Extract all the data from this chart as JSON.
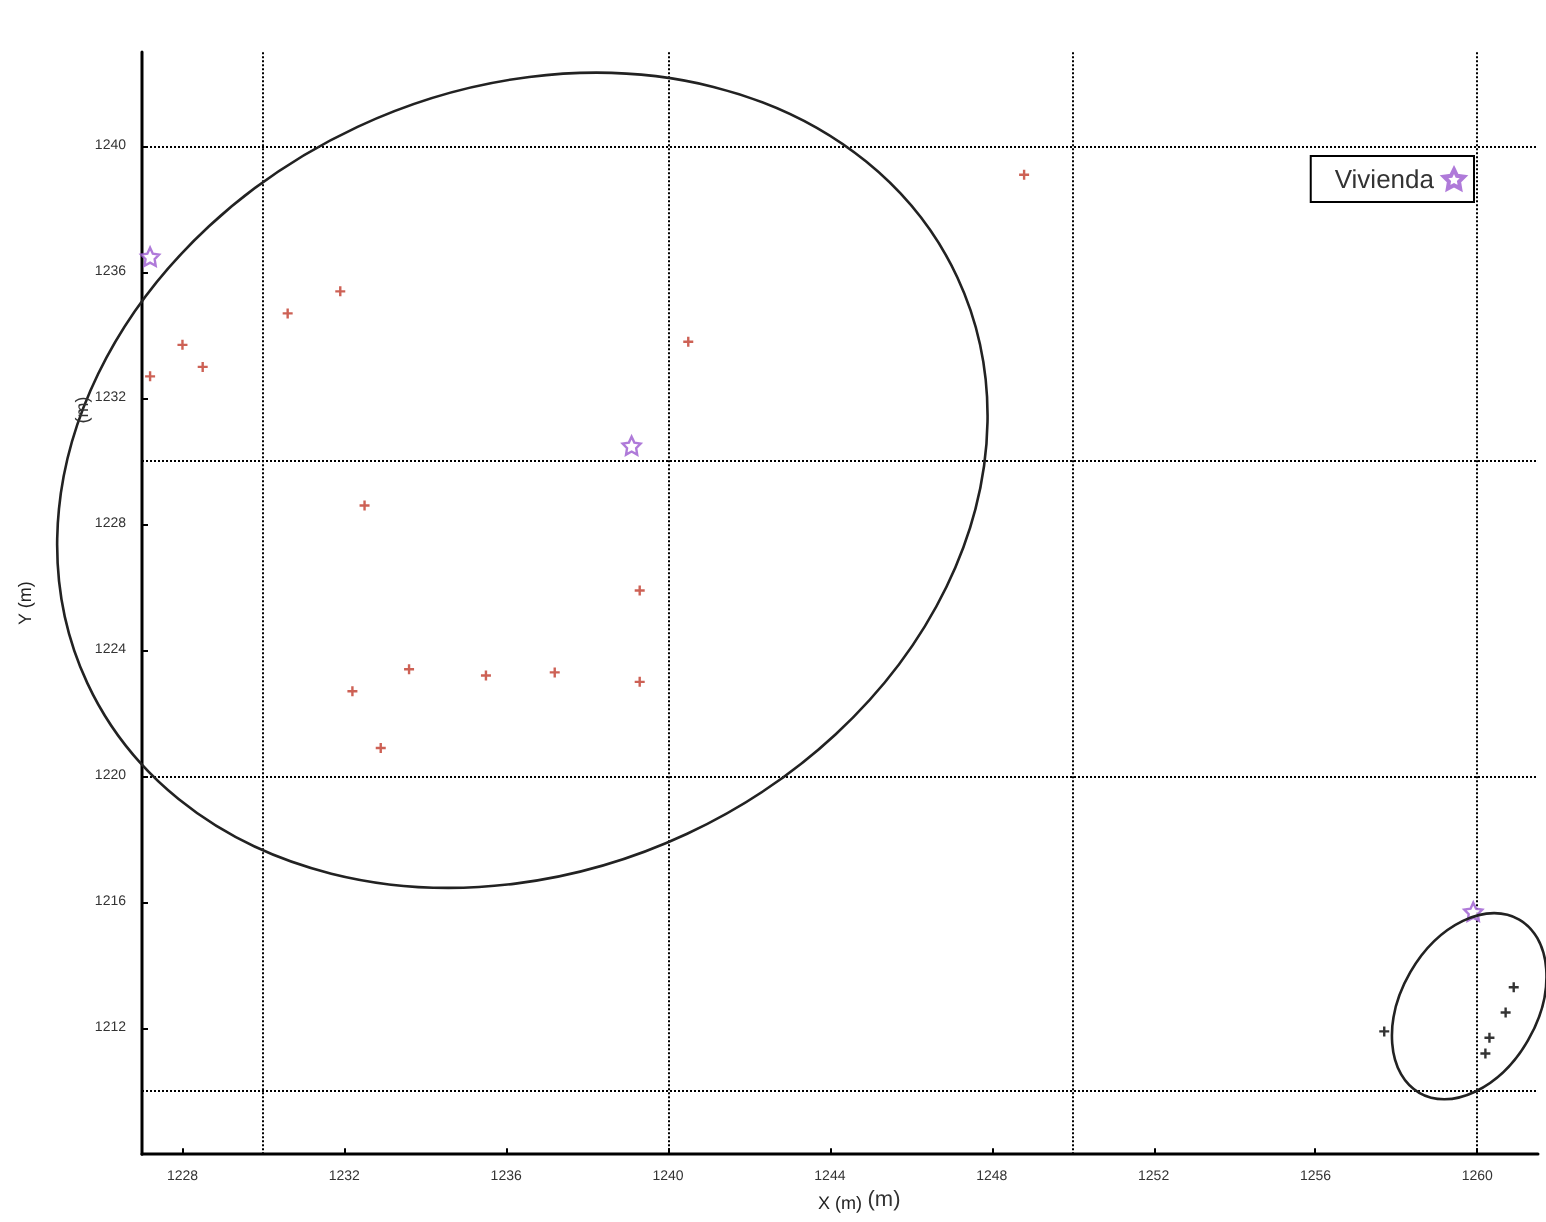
{
  "chart_data": {
    "type": "scatter",
    "xlabel": "X (m)",
    "ylabel": "Y (m)",
    "annotations": [
      "(m)",
      "(m)"
    ],
    "xlim": [
      1227,
      1261.5
    ],
    "xticks": [
      1228,
      1232,
      1236,
      1240,
      1244,
      1248,
      1252,
      1256,
      1260
    ],
    "ylim": [
      1208,
      1243
    ],
    "yticks": [
      1212,
      1216,
      1220,
      1224,
      1228,
      1232,
      1236,
      1240
    ],
    "grid": false,
    "legend": "top right",
    "ref_lines": [
      {
        "axis": "x",
        "value": 1230,
        "line_style": "dotted",
        "color": "#000000"
      },
      {
        "axis": "x",
        "value": 1240,
        "line_style": "dotted",
        "color": "#000000"
      },
      {
        "axis": "x",
        "value": 1250,
        "line_style": "dotted",
        "color": "#000000"
      },
      {
        "axis": "x",
        "value": 1260,
        "line_style": "dotted",
        "color": "#000000"
      },
      {
        "axis": "y",
        "value": 1210,
        "line_style": "dotted",
        "color": "#000000"
      },
      {
        "axis": "y",
        "value": 1220,
        "line_style": "dotted",
        "color": "#000000"
      },
      {
        "axis": "y",
        "value": 1230,
        "line_style": "dotted",
        "color": "#000000"
      },
      {
        "axis": "y",
        "value": 1240,
        "line_style": "dotted",
        "color": "#000000"
      }
    ],
    "series": [
      {
        "color": "#c0392b",
        "marker": "cross",
        "x": [
          1227.2,
          1228.0,
          1228.5,
          1230.6,
          1231.9,
          1240.5,
          1232.5,
          1239.3,
          1232.2,
          1233.6,
          1235.5,
          1237.2,
          1239.3,
          1232.9,
          1248.8
        ],
        "values": [
          1232.7,
          1233.7,
          1233.0,
          1234.7,
          1235.4,
          1233.8,
          1228.6,
          1225.9,
          1222.7,
          1223.4,
          1223.2,
          1223.3,
          1223.0,
          1220.9,
          1239.1
        ]
      },
      {
        "color": "#000000",
        "marker": "cross",
        "x": [
          1257.7,
          1260.9,
          1260.7,
          1260.3,
          1260.2
        ],
        "values": [
          1211.9,
          1213.3,
          1212.5,
          1211.7,
          1211.2
        ]
      },
      {
        "name": "Vivienda",
        "color": "#9b59d0",
        "marker": "star",
        "x": [
          1227.2,
          1239.1,
          1259.9
        ],
        "values": [
          1236.5,
          1230.5,
          1215.7
        ]
      }
    ]
  }
}
